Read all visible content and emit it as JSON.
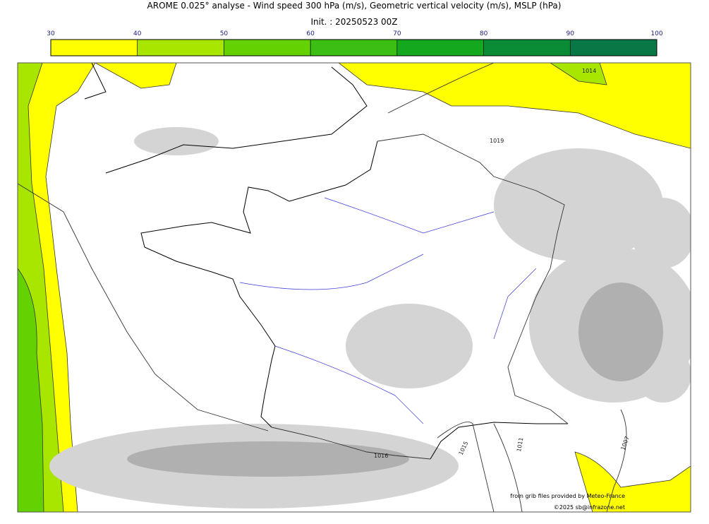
{
  "title": "AROME 0.025° analyse - Wind speed 300 hPa (m/s), Geometric vertical velocity (m/s), MSLP (hPa)",
  "subtitle": "Init. : 20250523 00Z",
  "colorbar": {
    "ticks": [
      30,
      40,
      50,
      60,
      70,
      80,
      90,
      100
    ],
    "colors": [
      "#ffff00",
      "#a8e600",
      "#64d200",
      "#3cbe14",
      "#14a81e",
      "#0a8c37",
      "#0a7846"
    ]
  },
  "isobar_labels": [
    "1014",
    "1019",
    "1015",
    "1011",
    "1007",
    "1016"
  ],
  "credits": [
    "from grib files provided by Meteo-France",
    "©2025 sb@infrazone.net"
  ]
}
